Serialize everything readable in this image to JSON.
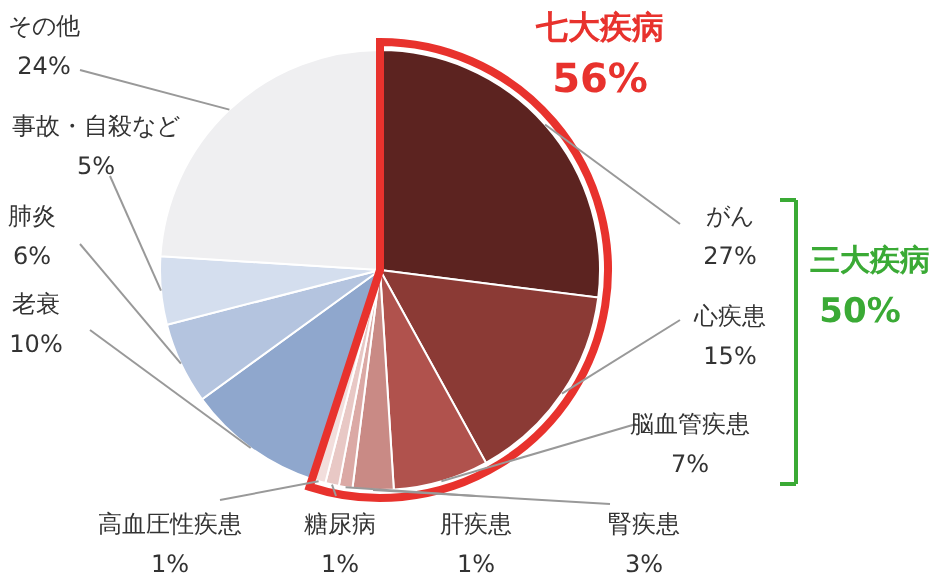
{
  "chart_data": {
    "type": "pie",
    "categories": [
      "がん",
      "心疾患",
      "脳血管疾患",
      "腎疾患",
      "肝疾患",
      "糖尿病",
      "高血圧性疾患",
      "老衰",
      "肺炎",
      "事故・自殺など",
      "その他"
    ],
    "values": [
      27,
      15,
      7,
      3,
      1,
      1,
      1,
      10,
      6,
      5,
      24
    ],
    "value_labels": [
      "27%",
      "15%",
      "7%",
      "3%",
      "1%",
      "1%",
      "1%",
      "10%",
      "6%",
      "5%",
      "24%"
    ],
    "colors": [
      "#5c2320",
      "#8b3a35",
      "#b0524d",
      "#c98a85",
      "#dba9a5",
      "#e8c8c5",
      "#f2dedc",
      "#8fa7cd",
      "#b4c4df",
      "#d4deee",
      "#efeff1"
    ],
    "annotations": [
      "七大疾病",
      "56%",
      "三大疾病",
      "50%"
    ]
  }
}
